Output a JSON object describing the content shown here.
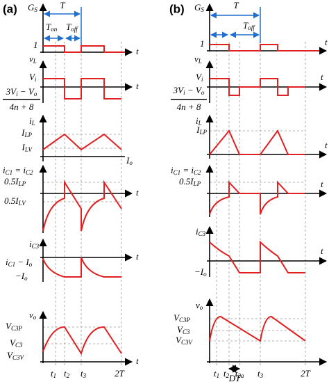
{
  "panels": [
    {
      "tag": "(a)",
      "labels": {
        "gs": [
          {
            "t": "G",
            "s": "S"
          }
        ],
        "T": "T",
        "ton": [
          {
            "t": "T",
            "s": "on"
          }
        ],
        "toff": [
          {
            "t": "T",
            "s": "off"
          }
        ],
        "one": "1",
        "t": "t",
        "vl": [
          {
            "t": "v",
            "s": "L"
          }
        ],
        "vi": [
          {
            "t": "V",
            "s": "i"
          }
        ],
        "num": [
          {
            "t": "3V",
            "s": "i"
          },
          {
            "t": " − V",
            "s": "o"
          }
        ],
        "den": "4n + 8",
        "il": [
          {
            "t": "i",
            "s": "L"
          }
        ],
        "ilp": [
          {
            "t": "I",
            "s": "LP"
          }
        ],
        "ilv": [
          {
            "t": "I",
            "s": "LV"
          }
        ],
        "io": [
          {
            "t": "I",
            "s": "o"
          }
        ],
        "ic1": [
          {
            "t": "i",
            "s": "C1"
          },
          {
            "t": " = i",
            "s": "C2"
          }
        ],
        "half_lp": [
          {
            "t": "0.5I",
            "s": "LP"
          }
        ],
        "half_lv": [
          {
            "t": "0.5I",
            "s": "LV"
          }
        ],
        "ic3": [
          {
            "t": "i",
            "s": "C3"
          }
        ],
        "ic1_io": [
          {
            "t": "i",
            "s": "C1"
          },
          {
            "t": " − I",
            "s": "o"
          }
        ],
        "neg_io": [
          {
            "t": "−I",
            "s": "o"
          }
        ],
        "vo": [
          {
            "t": "v",
            "s": "o"
          }
        ],
        "vc3p": [
          {
            "t": "V",
            "s": "C3P"
          }
        ],
        "vc3": [
          {
            "t": "V",
            "s": "C3"
          }
        ],
        "vc3v": [
          {
            "t": "V",
            "s": "C3V"
          }
        ],
        "t1": [
          {
            "t": "t",
            "s": "1"
          }
        ],
        "t2": [
          {
            "t": "t",
            "s": "2"
          }
        ],
        "t3": [
          {
            "t": "t",
            "s": "3"
          }
        ],
        "2T": "2T"
      }
    },
    {
      "tag": "(b)",
      "labels": {
        "gs": [
          {
            "t": "G",
            "s": "S"
          }
        ],
        "T": "T",
        "toff": [
          {
            "t": "T",
            "s": "off"
          }
        ],
        "one": "1",
        "t": "t",
        "vl": [
          {
            "t": "v",
            "s": "L"
          }
        ],
        "vi": [
          {
            "t": "V",
            "s": "i"
          }
        ],
        "num": [
          {
            "t": "3V",
            "s": "i"
          },
          {
            "t": " − V",
            "s": "o"
          }
        ],
        "den": "4n + 8",
        "il": [
          {
            "t": "i",
            "s": "L"
          }
        ],
        "ilp": [
          {
            "t": "I",
            "s": "LP"
          }
        ],
        "ic1": [
          {
            "t": "i",
            "s": "C1"
          },
          {
            "t": " = i",
            "s": "C2"
          }
        ],
        "half_lp": [
          {
            "t": "0.5I",
            "s": "LP"
          }
        ],
        "ic3": [
          {
            "t": "i",
            "s": "C3"
          }
        ],
        "neg_io": [
          {
            "t": "−I",
            "s": "o"
          }
        ],
        "vo": [
          {
            "t": "v",
            "s": "o"
          }
        ],
        "vc3p": [
          {
            "t": "V",
            "s": "C3P"
          }
        ],
        "vc3": [
          {
            "t": "V",
            "s": "C3"
          }
        ],
        "vc3v": [
          {
            "t": "V",
            "s": "C3V"
          }
        ],
        "t1": [
          {
            "t": "t",
            "s": "1"
          }
        ],
        "t2": [
          {
            "t": "t",
            "s": "2"
          }
        ],
        "t2a": [
          {
            "t": "t",
            "s": "2a"
          }
        ],
        "t3": [
          {
            "t": "t",
            "s": "3"
          }
        ],
        "2T": "2T",
        "DT": "DT"
      }
    }
  ]
}
